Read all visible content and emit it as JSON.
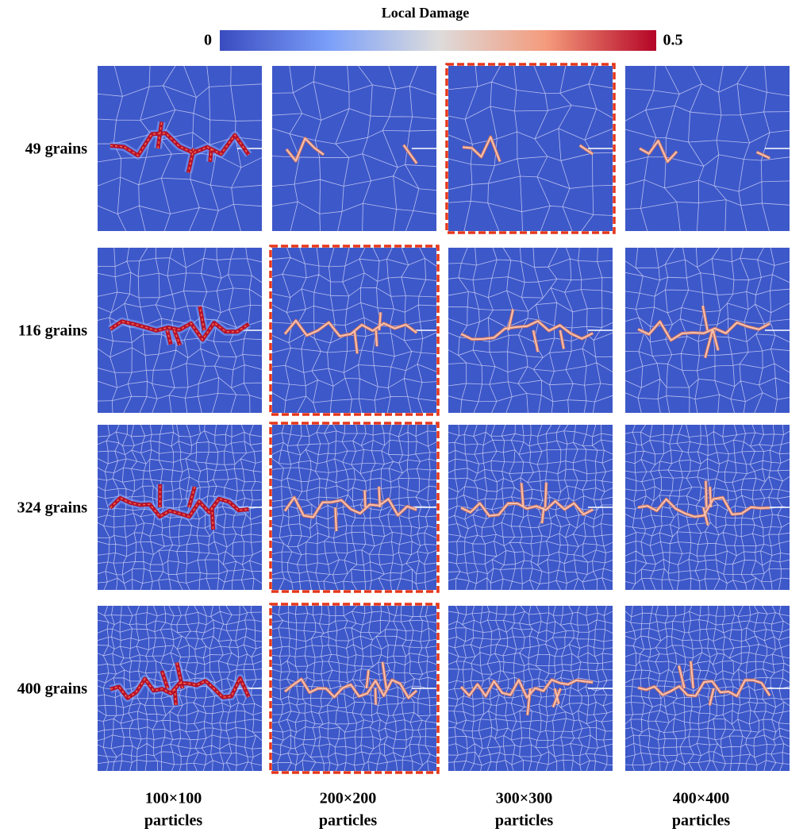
{
  "colorbar": {
    "title": "Local Damage",
    "min_label": "0",
    "max_label": "0.5"
  },
  "rows": [
    "49 grains",
    "116 grains",
    "324 grains",
    "400 grains"
  ],
  "columns": [
    {
      "size": "100×100",
      "unit": "particles"
    },
    {
      "size": "200×200",
      "unit": "particles"
    },
    {
      "size": "300×300",
      "unit": "particles"
    },
    {
      "size": "400×400",
      "unit": "particles"
    }
  ]
}
